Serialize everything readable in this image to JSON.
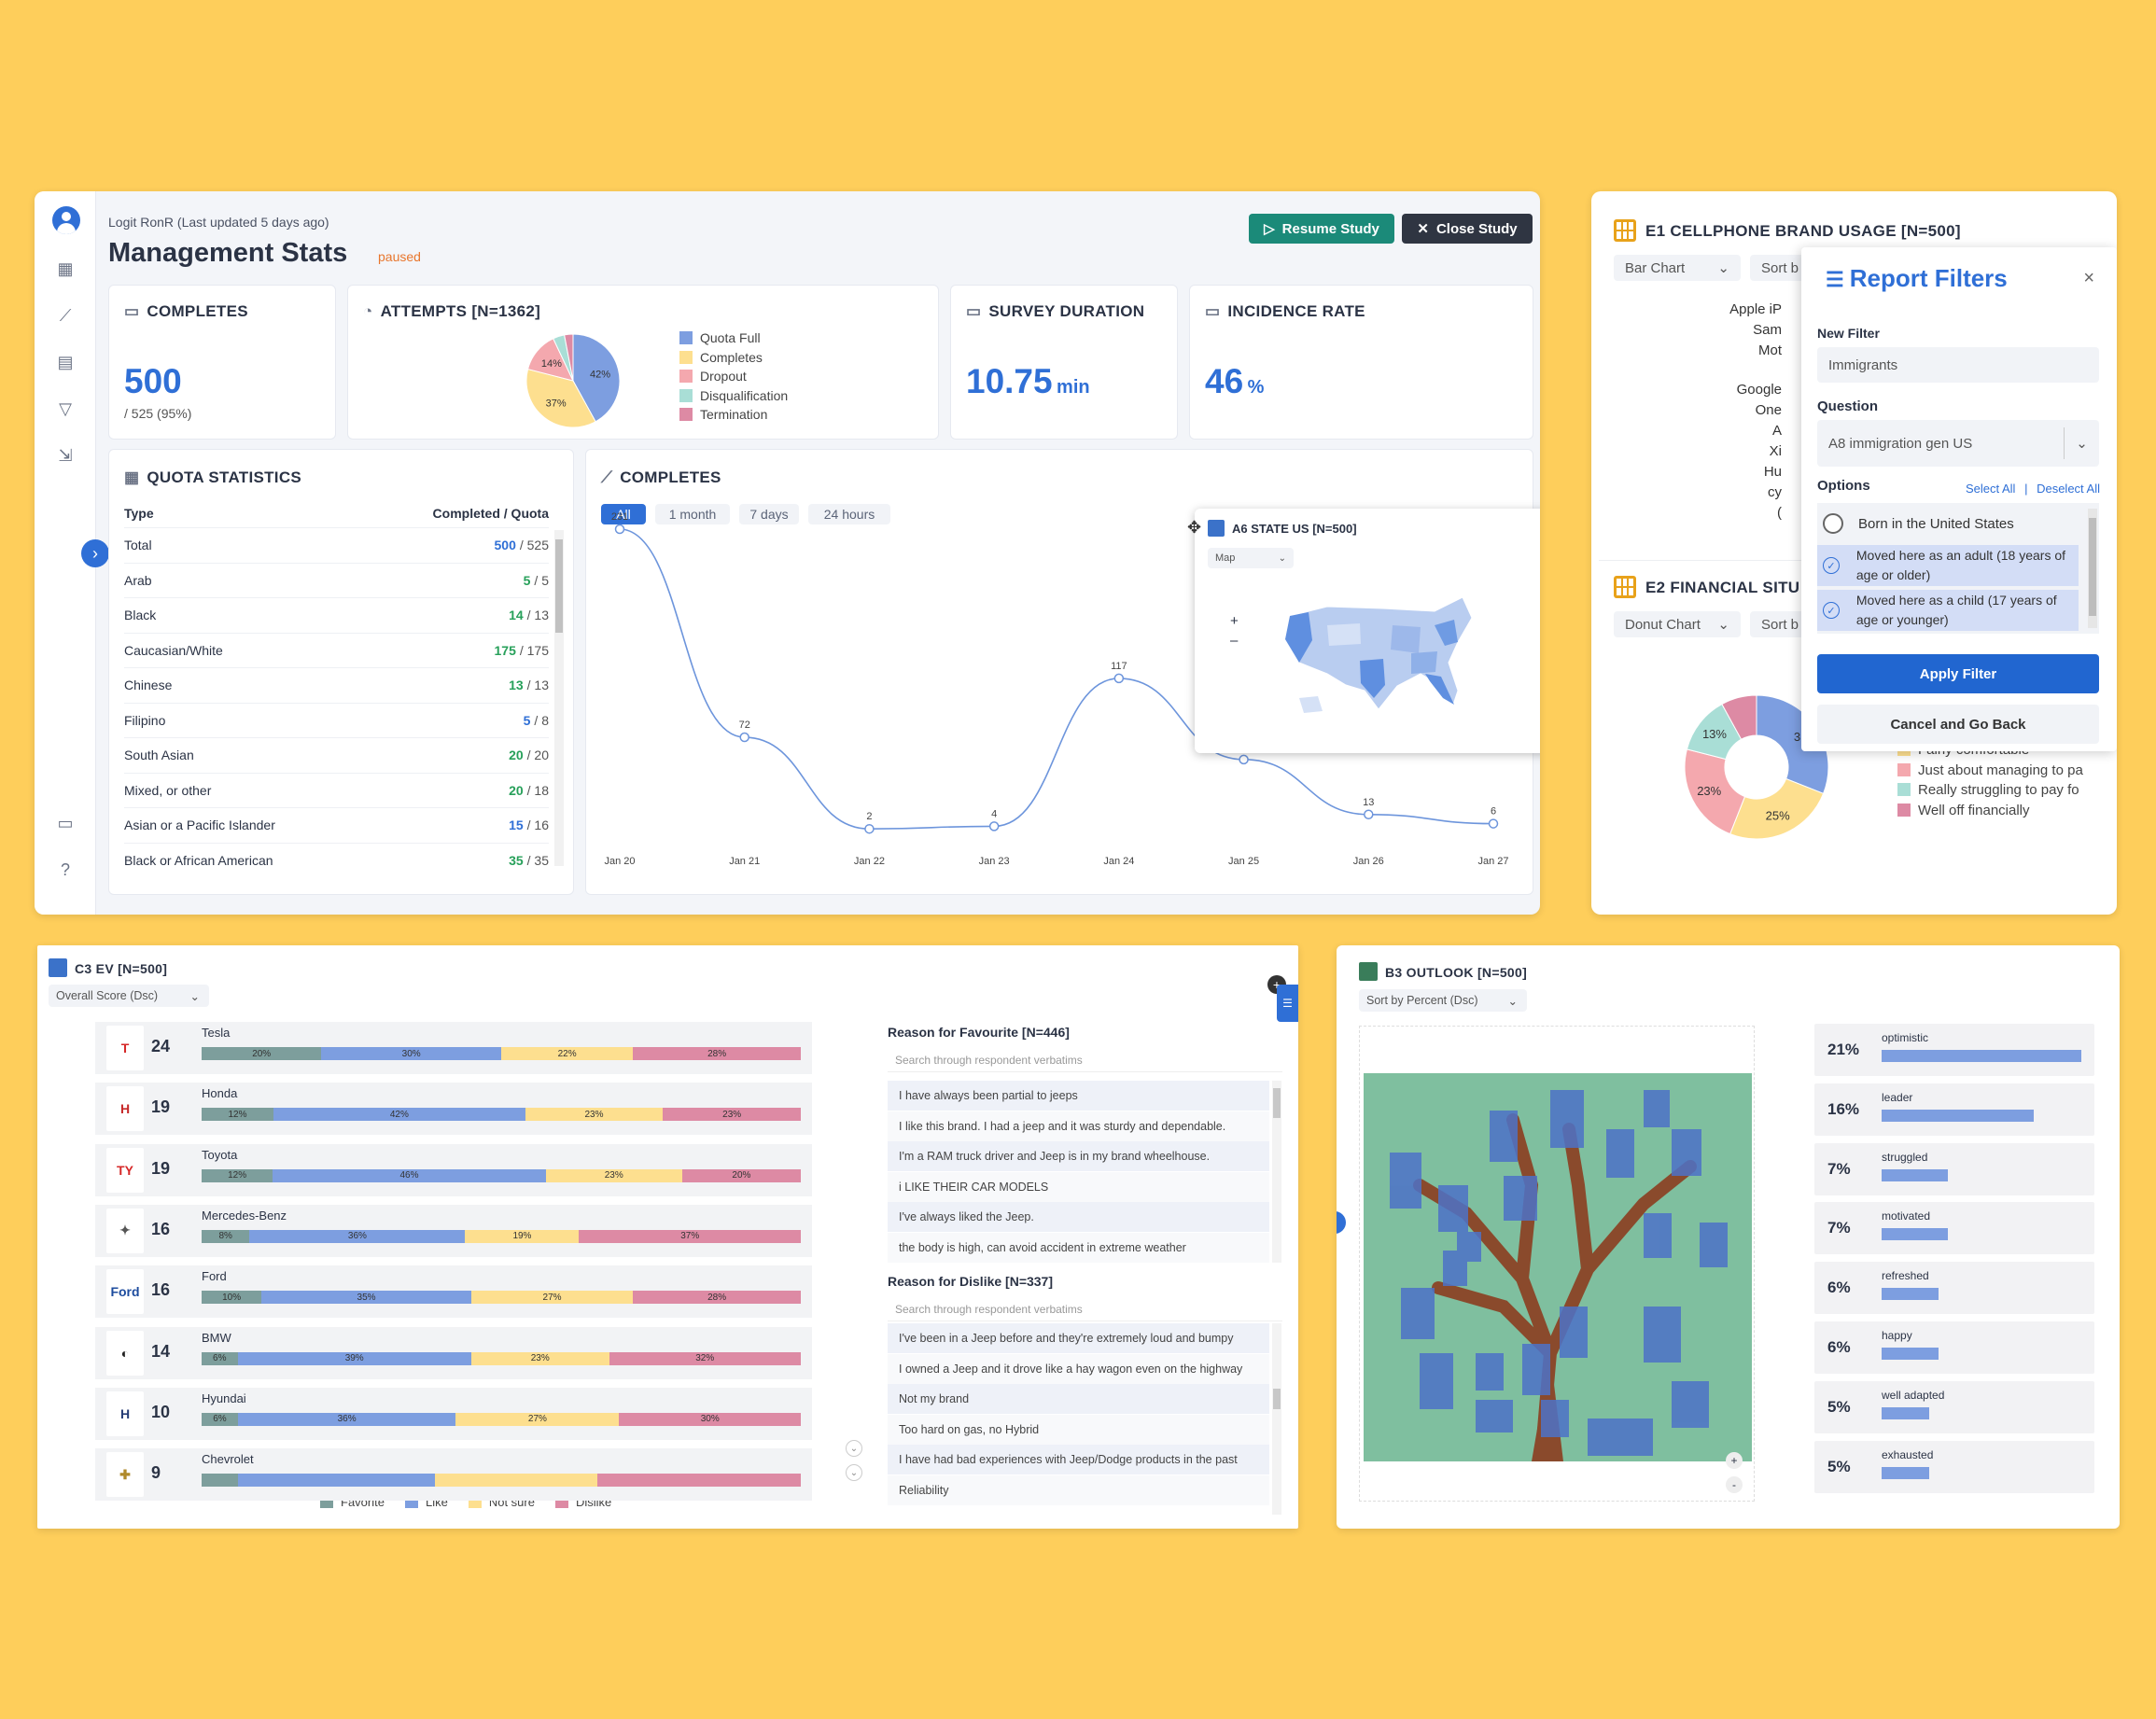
{
  "management": {
    "subtitle": "Logit RonR (Last updated 5 days ago)",
    "title": "Management Stats",
    "status": "paused",
    "resume_label": "Resume Study",
    "close_label": "Close Study",
    "completes": {
      "label": "COMPLETES",
      "value": "500",
      "sub": "/ 525 (95%)"
    },
    "attempts": {
      "label": "ATTEMPTS [N=1362]",
      "legend": [
        "Quota Full",
        "Completes",
        "Dropout",
        "Disqualification",
        "Termination"
      ],
      "slice_labels": [
        "42%",
        "37%",
        "14%"
      ],
      "slices": [
        42,
        37,
        14,
        4,
        3
      ],
      "colors": [
        "#7d9ee0",
        "#fddf8f",
        "#f4a8ae",
        "#a9ded6",
        "#dd8aa4"
      ]
    },
    "duration": {
      "label": "SURVEY DURATION",
      "value": "10.75",
      "unit": "min"
    },
    "incidence": {
      "label": "INCIDENCE RATE",
      "value": "46",
      "unit": "%"
    },
    "quota": {
      "label": "QUOTA STATISTICS",
      "col_type": "Type",
      "col_cq": "Completed / Quota",
      "rows": [
        {
          "type": "Total",
          "done": "500",
          "quota": "/ 525",
          "color": "#2f6fd6"
        },
        {
          "type": "Arab",
          "done": "5",
          "quota": "/ 5",
          "color": "#27a05a"
        },
        {
          "type": "Black",
          "done": "14",
          "quota": "/ 13",
          "color": "#27a05a"
        },
        {
          "type": "Caucasian/White",
          "done": "175",
          "quota": "/ 175",
          "color": "#27a05a"
        },
        {
          "type": "Chinese",
          "done": "13",
          "quota": "/ 13",
          "color": "#27a05a"
        },
        {
          "type": "Filipino",
          "done": "5",
          "quota": "/ 8",
          "color": "#2f6fd6"
        },
        {
          "type": "South Asian",
          "done": "20",
          "quota": "/ 20",
          "color": "#27a05a"
        },
        {
          "type": "Mixed, or other",
          "done": "20",
          "quota": "/ 18",
          "color": "#27a05a"
        },
        {
          "type": "Asian or a Pacific Islander",
          "done": "15",
          "quota": "/ 16",
          "color": "#2f6fd6"
        },
        {
          "type": "Black or African American",
          "done": "35",
          "quota": "/ 35",
          "color": "#27a05a"
        }
      ]
    },
    "completes_chart": {
      "label": "COMPLETES",
      "tabs": [
        "All",
        "1 month",
        "7 days",
        "24 hours"
      ]
    }
  },
  "chart_data": {
    "type": "line",
    "x": [
      "Jan 20",
      "Jan 21",
      "Jan 22",
      "Jan 23",
      "Jan 24",
      "Jan 25",
      "Jan 26",
      "Jan 27"
    ],
    "values": [
      231,
      72,
      2,
      4,
      117,
      55,
      13,
      6
    ],
    "ylim": [
      0,
      231
    ],
    "color": "#6d95dc",
    "grid": false
  },
  "state_map": {
    "title": "A6 STATE US [N=500]",
    "selector": "Map",
    "plus": "+",
    "minus": "–"
  },
  "cellphone": {
    "title": "E1 CELLPHONE BRAND USAGE [N=500]",
    "chart_type": "Bar Chart",
    "sort": "Sort b",
    "labels": [
      "Apple iP",
      "Sam",
      "Mot",
      "Google",
      "One",
      "A",
      "Xi",
      "Hu",
      "cy",
      "("
    ]
  },
  "financial": {
    "title": "E2 FINANCIAL SITU",
    "chart_type": "Donut Chart",
    "sort": "Sort b",
    "slice_labels": [
      "31",
      "25%",
      "23%",
      "13%"
    ],
    "slices": [
      31,
      25,
      23,
      13,
      8
    ],
    "colors": [
      "#7d9ee0",
      "#fddf8f",
      "#f4a8ae",
      "#a9ded6",
      "#dd8aa4"
    ],
    "legend": [
      "Fairly comfortable",
      "Just about managing to pa",
      "Really struggling to pay fo",
      "Well off financially"
    ],
    "legend_colors": [
      "#fddf8f",
      "#f4a8ae",
      "#a9ded6",
      "#dd8aa4"
    ]
  },
  "filters": {
    "title": "Report Filters",
    "close": "×",
    "new_filter_label": "New Filter",
    "new_filter_value": "Immigrants",
    "question_label": "Question",
    "question_value": "A8 immigration gen US",
    "options_label": "Options",
    "select_all": "Select All",
    "sep": "|",
    "deselect_all": "Deselect All",
    "options": [
      {
        "text": "Born in the United States",
        "checked": false
      },
      {
        "text": "Moved here as an adult (18 years of age or older)",
        "checked": true
      },
      {
        "text": "Moved here as a child (17 years of age or younger)",
        "checked": true
      }
    ],
    "apply_label": "Apply Filter",
    "cancel_label": "Cancel and Go Back"
  },
  "ev": {
    "title": "C3 EV [N=500]",
    "sort": "Overall Score (Dsc)",
    "brands": [
      {
        "name": "Tesla",
        "score": "24",
        "logo": "T",
        "logo_color": "#d62828",
        "segs": [
          20,
          30,
          22,
          28
        ]
      },
      {
        "name": "Honda",
        "score": "19",
        "logo": "H",
        "logo_color": "#c62828",
        "segs": [
          12,
          42,
          23,
          23
        ]
      },
      {
        "name": "Toyota",
        "score": "19",
        "logo": "TY",
        "logo_color": "#d62828",
        "segs": [
          12,
          46,
          23,
          20
        ]
      },
      {
        "name": "Mercedes-Benz",
        "score": "16",
        "logo": "✦",
        "logo_color": "#555555",
        "segs": [
          8,
          36,
          19,
          37
        ]
      },
      {
        "name": "Ford",
        "score": "16",
        "logo": "Ford",
        "logo_color": "#1d4c9e",
        "segs": [
          10,
          35,
          27,
          28
        ]
      },
      {
        "name": "BMW",
        "score": "14",
        "logo": "◐",
        "logo_color": "#222222",
        "segs": [
          6,
          39,
          23,
          32
        ]
      },
      {
        "name": "Hyundai",
        "score": "10",
        "logo": "H",
        "logo_color": "#243b74",
        "segs": [
          6,
          36,
          27,
          30
        ]
      },
      {
        "name": "Chevrolet",
        "score": "9",
        "logo": "✚",
        "logo_color": "#b08a2a",
        "segs": [
          6,
          33,
          27,
          34
        ]
      }
    ],
    "seg_labels": [
      [
        "20%",
        "30%",
        "22%",
        "28%"
      ],
      [
        "12%",
        "42%",
        "23%",
        "23%"
      ],
      [
        "12%",
        "46%",
        "23%",
        "20%"
      ],
      [
        "8%",
        "36%",
        "19%",
        "37%"
      ],
      [
        "10%",
        "35%",
        "27%",
        "28%"
      ],
      [
        "6%",
        "39%",
        "23%",
        "32%"
      ],
      [
        "6%",
        "36%",
        "27%",
        "30%"
      ],
      [
        "",
        "",
        "",
        ""
      ]
    ],
    "seg_colors": [
      "#7d9e9c",
      "#7d9ee0",
      "#fddf8f",
      "#dd8aa4"
    ],
    "legend": [
      "Favorite",
      "Like",
      "Not sure",
      "Dislike"
    ],
    "fav_title": "Reason for Favourite [N=446]",
    "dislike_title": "Reason for Dislike [N=337]",
    "search_placeholder": "Search through respondent verbatims",
    "fav_verbatims": [
      "I have always been partial to jeeps",
      "I like this brand. I had a jeep and it was sturdy and dependable.",
      "I'm a RAM truck driver and Jeep is in my brand wheelhouse.",
      "i LIKE THEIR CAR MODELS",
      "I've always liked the Jeep.",
      "the body is high, can avoid accident in extreme weather"
    ],
    "dislike_verbatims": [
      "I've been in a Jeep before and they're extremely loud and bumpy",
      "I owned a Jeep and it drove like a hay wagon even on the highway",
      "Not my brand",
      "Too hard on gas, no Hybrid",
      "I have had bad experiences with Jeep/Dodge products in the past",
      "Reliability"
    ]
  },
  "outlook": {
    "title": "B3 OUTLOOK [N=500]",
    "sort": "Sort by Percent (Dsc)",
    "zoom_in": "+",
    "zoom_out": "-",
    "items": [
      {
        "pct": "21%",
        "label": "optimistic",
        "value": 21
      },
      {
        "pct": "16%",
        "label": "leader",
        "value": 16
      },
      {
        "pct": "7%",
        "label": "struggled",
        "value": 7
      },
      {
        "pct": "7%",
        "label": "motivated",
        "value": 7
      },
      {
        "pct": "6%",
        "label": "refreshed",
        "value": 6
      },
      {
        "pct": "6%",
        "label": "happy",
        "value": 6
      },
      {
        "pct": "5%",
        "label": "well adapted",
        "value": 5
      },
      {
        "pct": "5%",
        "label": "exhausted",
        "value": 5
      }
    ]
  }
}
